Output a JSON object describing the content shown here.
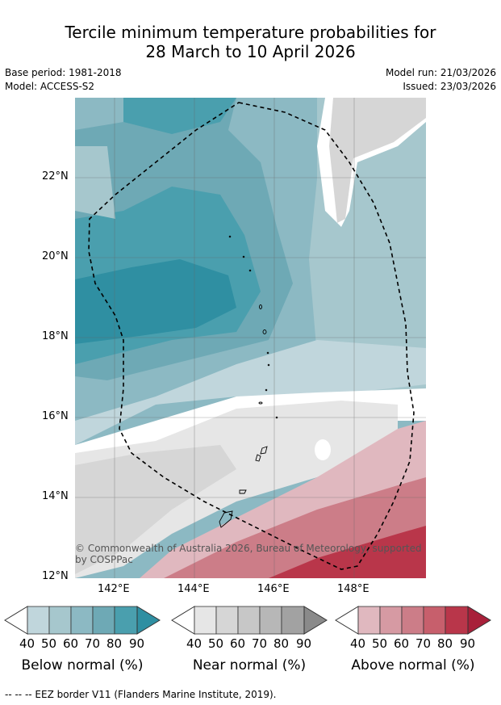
{
  "title": {
    "line1": "Tercile minimum temperature probabilities for",
    "line2": "28 March to 10 April 2026"
  },
  "meta": {
    "base_period": "Base period: 1981-2018",
    "model": "Model: ACCESS-S2",
    "model_run": "Model run: 21/03/2026",
    "issued": "Issued: 23/03/2026"
  },
  "map": {
    "lon_ticks": [
      "142°E",
      "144°E",
      "146°E",
      "148°E"
    ],
    "lat_ticks": [
      "22°N",
      "20°N",
      "18°N",
      "16°N",
      "14°N",
      "12°N"
    ],
    "copyright": "© Commonwealth of Australia 2026, Bureau of Meteorology, supported by COSPPac"
  },
  "colorbars": [
    {
      "label": "Below normal (%)",
      "ticks": [
        "40",
        "50",
        "60",
        "70",
        "80",
        "90"
      ],
      "colors": [
        "#c0d6dc",
        "#a6c7cd",
        "#8cb9c3",
        "#6ea9b5",
        "#4a9fae",
        "#2f8fa2"
      ]
    },
    {
      "label": "Near normal (%)",
      "ticks": [
        "40",
        "50",
        "60",
        "70",
        "80",
        "90"
      ],
      "colors": [
        "#e6e6e6",
        "#d6d6d6",
        "#c7c7c7",
        "#b7b7b7",
        "#a2a2a2",
        "#8a8a8a"
      ]
    },
    {
      "label": "Above normal (%)",
      "ticks": [
        "40",
        "50",
        "60",
        "70",
        "80",
        "90"
      ],
      "colors": [
        "#e0b8bf",
        "#d69aa3",
        "#cc7d88",
        "#c75f6c",
        "#b9364a",
        "#a8203a"
      ]
    }
  ],
  "footer": {
    "eez_text": "--  --  -- EEZ border V11 (Flanders Marine Institute, 2019)."
  }
}
